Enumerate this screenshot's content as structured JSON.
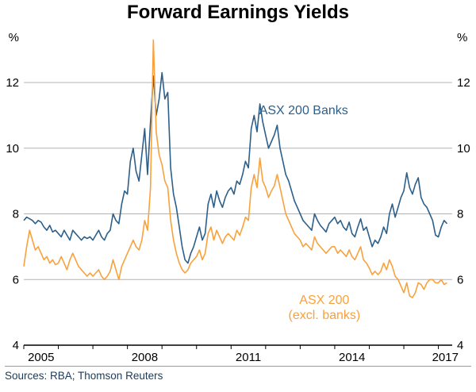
{
  "title": "Forward Earnings Yields",
  "footer": {
    "sources": "Sources: RBA; Thomson Reuters"
  },
  "chart_data": {
    "type": "line",
    "title": "Forward Earnings Yields",
    "unit": "%",
    "ylim": [
      4,
      13.5
    ],
    "xlim": [
      2005.0,
      2017.4
    ],
    "yticks": [
      4,
      6,
      8,
      10,
      12
    ],
    "xtick_labels": [
      {
        "label": "2005",
        "x": 2005.5
      },
      {
        "label": "2008",
        "x": 2008.5
      },
      {
        "label": "2011",
        "x": 2011.5
      },
      {
        "label": "2014",
        "x": 2014.5
      },
      {
        "label": "2017",
        "x": 2017.2
      }
    ],
    "grid": "horizontal",
    "legend_position": "inline-annotations",
    "colors": {
      "banks": "#2c5f8a",
      "excl_banks": "#f9a13c",
      "gridline": "#b3b3b3",
      "axis": "#000000"
    },
    "series": [
      {
        "name": "ASX 200 Banks",
        "color": "#2c5f8a",
        "x_start": 2005.0,
        "x_step": 0.0833333,
        "values": [
          7.8,
          7.9,
          7.85,
          7.8,
          7.7,
          7.8,
          7.75,
          7.6,
          7.5,
          7.65,
          7.45,
          7.5,
          7.4,
          7.3,
          7.5,
          7.35,
          7.2,
          7.5,
          7.4,
          7.3,
          7.2,
          7.3,
          7.25,
          7.3,
          7.2,
          7.35,
          7.5,
          7.3,
          7.2,
          7.4,
          7.5,
          8.0,
          7.8,
          7.7,
          8.3,
          8.7,
          8.6,
          9.6,
          10.0,
          9.3,
          9.0,
          9.8,
          10.6,
          9.2,
          10.8,
          12.2,
          11.0,
          11.5,
          12.3,
          11.5,
          11.7,
          9.4,
          8.6,
          8.2,
          7.6,
          7.0,
          6.6,
          6.5,
          6.8,
          7.0,
          7.3,
          7.6,
          7.2,
          7.4,
          8.3,
          8.6,
          8.2,
          8.7,
          8.4,
          8.2,
          8.5,
          8.7,
          8.8,
          8.6,
          9.0,
          8.9,
          9.2,
          9.6,
          9.4,
          10.6,
          11.0,
          10.5,
          11.35,
          10.8,
          10.4,
          10.0,
          10.2,
          10.4,
          10.7,
          10.0,
          9.6,
          9.2,
          9.0,
          8.7,
          8.4,
          8.2,
          8.0,
          7.8,
          7.7,
          7.6,
          7.5,
          8.0,
          7.8,
          7.65,
          7.55,
          7.45,
          7.7,
          7.8,
          7.9,
          7.7,
          7.8,
          7.6,
          7.5,
          7.75,
          7.4,
          7.3,
          7.6,
          7.85,
          7.5,
          7.6,
          7.3,
          7.0,
          7.2,
          7.1,
          7.3,
          7.6,
          7.4,
          8.0,
          8.3,
          7.9,
          8.2,
          8.5,
          8.7,
          9.25,
          8.8,
          8.6,
          8.9,
          9.1,
          8.5,
          8.3,
          8.2,
          8.0,
          7.8,
          7.35,
          7.3,
          7.6,
          7.8,
          7.7
        ]
      },
      {
        "name": "ASX 200 (excl. banks)",
        "color": "#f9a13c",
        "x_start": 2005.0,
        "x_step": 0.0833333,
        "values": [
          6.4,
          7.0,
          7.5,
          7.2,
          6.9,
          7.0,
          6.8,
          6.6,
          6.7,
          6.5,
          6.6,
          6.45,
          6.5,
          6.7,
          6.5,
          6.3,
          6.6,
          6.8,
          6.6,
          6.4,
          6.3,
          6.2,
          6.1,
          6.2,
          6.1,
          6.2,
          6.3,
          6.1,
          6.0,
          6.1,
          6.25,
          6.6,
          6.3,
          6.0,
          6.4,
          6.6,
          6.8,
          7.0,
          7.2,
          7.0,
          6.9,
          7.2,
          7.8,
          7.5,
          8.8,
          13.3,
          10.5,
          9.8,
          9.5,
          9.0,
          8.8,
          7.8,
          7.2,
          6.8,
          6.5,
          6.3,
          6.2,
          6.3,
          6.5,
          6.6,
          6.7,
          6.9,
          6.6,
          6.8,
          7.4,
          7.6,
          7.2,
          7.5,
          7.3,
          7.1,
          7.3,
          7.4,
          7.3,
          7.2,
          7.5,
          7.35,
          7.6,
          7.9,
          7.8,
          8.8,
          9.2,
          8.8,
          9.7,
          9.0,
          8.8,
          8.5,
          8.7,
          8.85,
          9.2,
          8.8,
          8.4,
          8.0,
          7.8,
          7.6,
          7.4,
          7.3,
          7.2,
          7.0,
          7.1,
          7.0,
          6.9,
          7.3,
          7.1,
          7.0,
          6.9,
          6.8,
          6.9,
          7.0,
          7.0,
          6.8,
          6.9,
          6.8,
          6.7,
          6.9,
          6.7,
          6.6,
          6.8,
          7.0,
          6.6,
          6.5,
          6.35,
          6.15,
          6.25,
          6.15,
          6.25,
          6.5,
          6.3,
          6.6,
          6.4,
          6.1,
          6.0,
          5.8,
          5.6,
          5.9,
          5.5,
          5.45,
          5.6,
          5.9,
          5.85,
          5.7,
          5.9,
          6.0,
          6.0,
          5.9,
          5.9,
          6.0,
          5.85,
          5.9
        ]
      }
    ],
    "annotations": [
      {
        "text": "ASX 200 Banks",
        "x": 2013.1,
        "y": 11.03,
        "color": "#2c5f8a"
      },
      {
        "text": "ASX 200",
        "x": 2013.7,
        "y": 5.26,
        "color": "#f9a13c"
      },
      {
        "text": "(excl. banks)",
        "x": 2013.7,
        "y": 4.8,
        "color": "#f9a13c"
      }
    ]
  }
}
